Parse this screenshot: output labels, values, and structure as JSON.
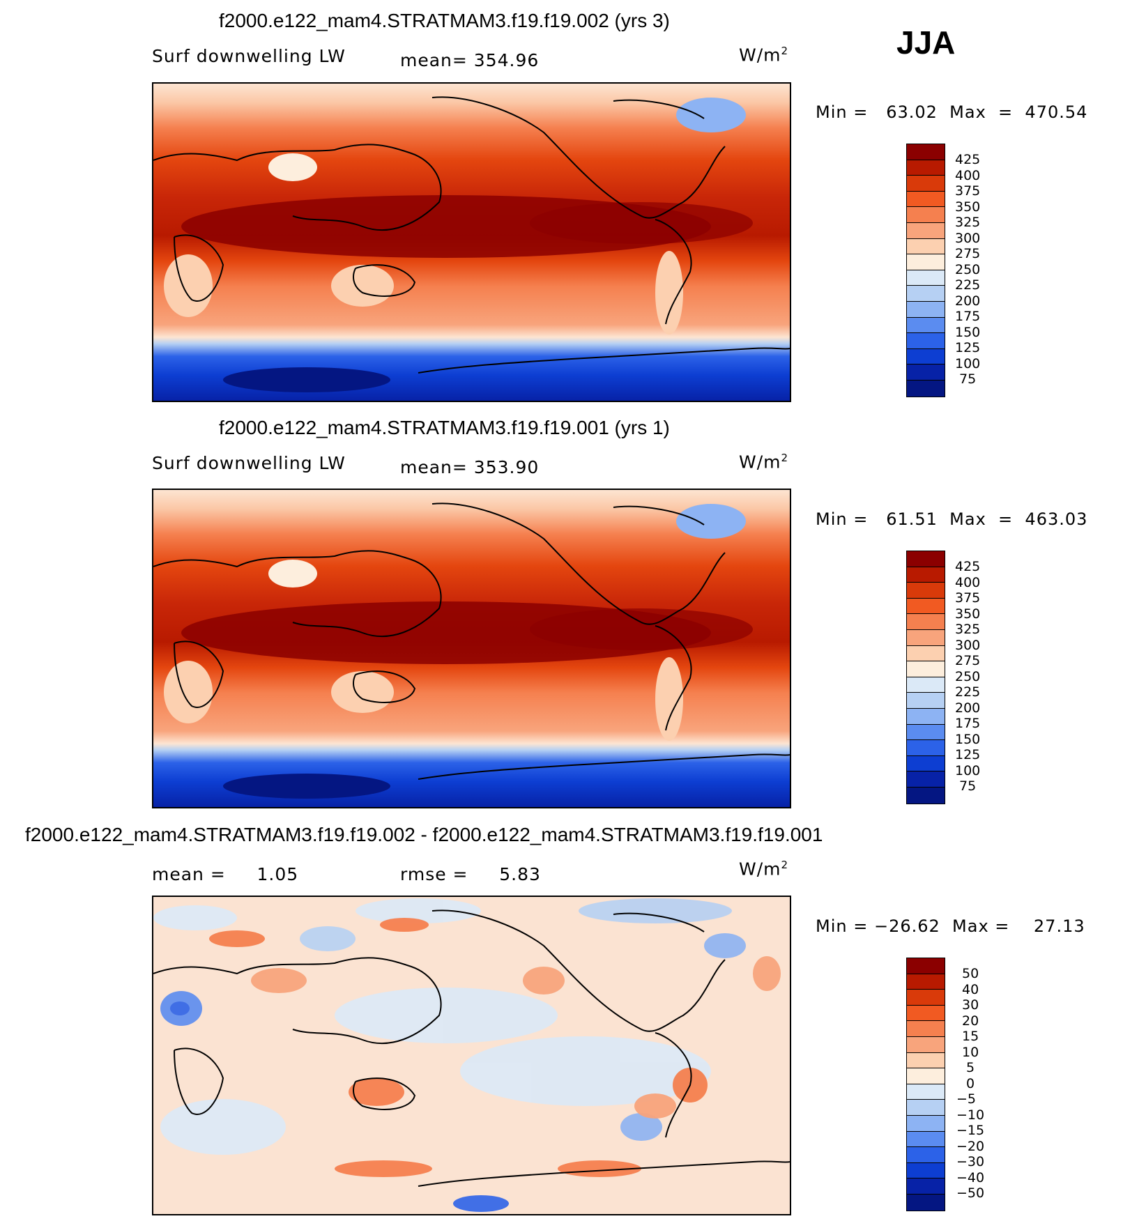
{
  "season": "JJA",
  "panels": [
    {
      "title": "f2000.e122_mam4.STRATMAM3.f19.f19.002 (yrs 3)",
      "left_label": "Surf downwelling LW",
      "stat_label": "mean= 354.96",
      "units": "W/m",
      "units_sup": "2",
      "minmax": "Min =   63.02  Max  =  470.54",
      "colorbar_labels": [
        "425",
        "400",
        "375",
        "350",
        "325",
        "300",
        "275",
        "250",
        "225",
        "200",
        "175",
        "150",
        "125",
        "100",
        "75"
      ],
      "colors": [
        "#8b0000",
        "#b81a00",
        "#d93a0a",
        "#f15a22",
        "#f5804f",
        "#f8a47c",
        "#fcd0b0",
        "#fdeedd",
        "#dbe9f7",
        "#b6d0f3",
        "#8db3f3",
        "#5b8cf0",
        "#2c62e8",
        "#0d3ed2",
        "#0722a7",
        "#041682"
      ]
    },
    {
      "title": "f2000.e122_mam4.STRATMAM3.f19.f19.001 (yrs 1)",
      "left_label": "Surf downwelling LW",
      "stat_label": "mean= 353.90",
      "units": "W/m",
      "units_sup": "2",
      "minmax": "Min =   61.51  Max  =  463.03",
      "colorbar_labels": [
        "425",
        "400",
        "375",
        "350",
        "325",
        "300",
        "275",
        "250",
        "225",
        "200",
        "175",
        "150",
        "125",
        "100",
        "75"
      ],
      "colors": [
        "#8b0000",
        "#b81a00",
        "#d93a0a",
        "#f15a22",
        "#f5804f",
        "#f8a47c",
        "#fcd0b0",
        "#fdeedd",
        "#dbe9f7",
        "#b6d0f3",
        "#8db3f3",
        "#5b8cf0",
        "#2c62e8",
        "#0d3ed2",
        "#0722a7",
        "#041682"
      ]
    },
    {
      "title": "f2000.e122_mam4.STRATMAM3.f19.f19.002 - f2000.e122_mam4.STRATMAM3.f19.f19.001",
      "left_label": "mean =     1.05",
      "stat_label": "rmse =     5.83",
      "units": "W/m",
      "units_sup": "2",
      "minmax": "Min = −26.62  Max =    27.13",
      "colorbar_labels": [
        "50",
        "40",
        "30",
        "20",
        "15",
        "10",
        "5",
        "0",
        "−5",
        "−10",
        "−15",
        "−20",
        "−30",
        "−40",
        "−50"
      ],
      "colors": [
        "#8b0000",
        "#b81a00",
        "#d93a0a",
        "#f15a22",
        "#f5804f",
        "#f8a47c",
        "#fcd0b0",
        "#fdeedd",
        "#dbe9f7",
        "#b6d0f3",
        "#8db3f3",
        "#5b8cf0",
        "#2c62e8",
        "#0d3ed2",
        "#0722a7",
        "#041682"
      ]
    }
  ]
}
